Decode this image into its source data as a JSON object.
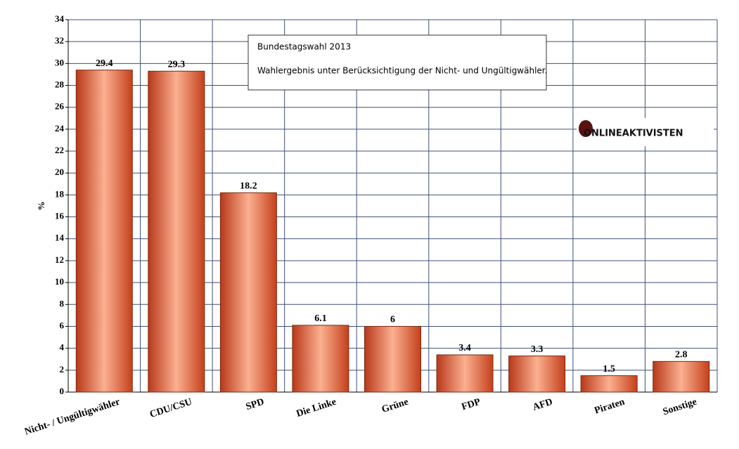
{
  "chart_data": {
    "type": "bar",
    "title": "Bundestagswahl 2013",
    "subtitle": "Wahlergebnis unter Berücksichtigung der Nicht- und Ungültigwähler.",
    "logo_text": "ONLINEAKTIVISTEN",
    "ylabel": "%",
    "categories": [
      "Nicht- / Ungültigwähler",
      "CDU/CSU",
      "SPD",
      "Die Linke",
      "Grüne",
      "FDP",
      "AFD",
      "Piraten",
      "Sonstige"
    ],
    "values": [
      29.4,
      29.3,
      18.2,
      6.1,
      6,
      3.4,
      3.3,
      1.5,
      2.8
    ],
    "color": "#e8552a",
    "ylim": [
      0,
      34
    ],
    "yticks": [
      0,
      2,
      4,
      6,
      8,
      10,
      12,
      14,
      16,
      18,
      20,
      22,
      24,
      26,
      28,
      30,
      32,
      34
    ],
    "grid": true
  }
}
